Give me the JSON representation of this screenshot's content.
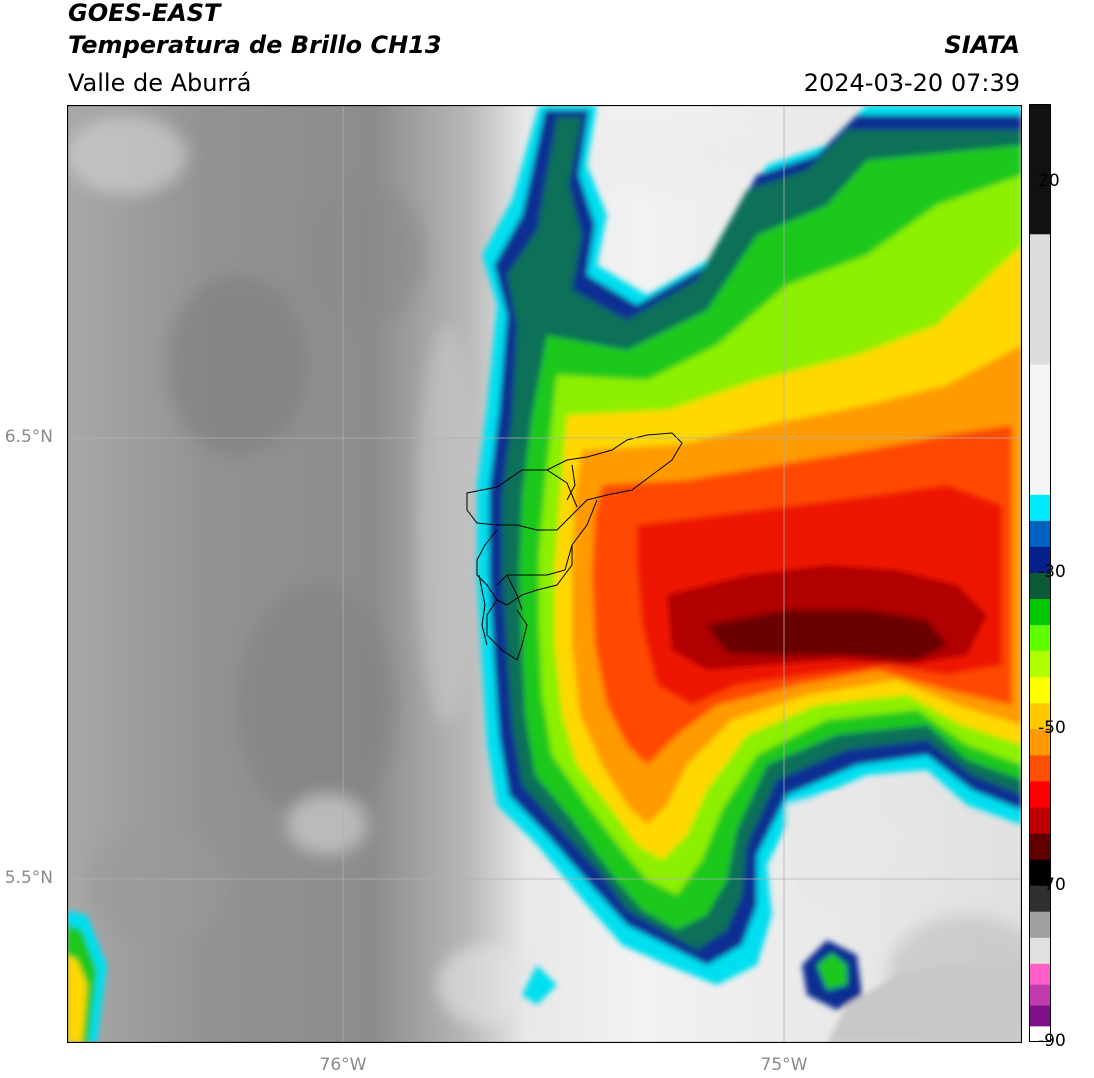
{
  "header": {
    "satellite": "GOES-EAST",
    "product": "Temperatura de Brillo CH13",
    "organization": "SIATA",
    "region": "Valle de Aburrá",
    "timestamp": "2024-03-20 07:39"
  },
  "map": {
    "lat_ticks": [
      {
        "label": "6.5°N",
        "value": 6.5
      },
      {
        "label": "5.5°N",
        "value": 5.5
      }
    ],
    "lon_ticks": [
      {
        "label": "76°W",
        "value": -76.0
      },
      {
        "label": "75°W",
        "value": -75.0
      }
    ],
    "colors": {
      "warm_gray_dark": "#8a8a8a",
      "warm_gray_light": "#e6e6e6",
      "cold_cyan": "#00e5f0",
      "cold_blue": "#062a8a",
      "cold_green": "#2fd12f",
      "cold_yellow": "#ffe000",
      "cold_orange": "#ff7a00",
      "cold_red": "#ff1a00",
      "coldest_darkred": "#6b0000",
      "boundary": "#000000",
      "grid": "#b0b0b0"
    }
  },
  "colorbar": {
    "tick_labels": [
      {
        "label": "20",
        "value": 20
      },
      {
        "label": "-30",
        "value": -30
      },
      {
        "label": "-50",
        "value": -50
      },
      {
        "label": "-70",
        "value": -70
      },
      {
        "label": "-90",
        "value": -90
      }
    ],
    "range": [
      -90,
      30
    ],
    "segments": [
      {
        "from": 30,
        "to": -20,
        "colors": [
          "#111111",
          "#dddddd",
          "#f5f5f5"
        ]
      },
      {
        "from": -20,
        "to": -30,
        "colors": [
          "#00eaff",
          "#0060c0",
          "#06208a"
        ]
      },
      {
        "from": -30,
        "to": -40,
        "colors": [
          "#0a5a3a",
          "#00c800",
          "#60ff00"
        ]
      },
      {
        "from": -40,
        "to": -50,
        "colors": [
          "#b0ff00",
          "#ffff00",
          "#ffc800"
        ]
      },
      {
        "from": -50,
        "to": -60,
        "colors": [
          "#ff9a00",
          "#ff5000",
          "#ff0000"
        ]
      },
      {
        "from": -60,
        "to": -70,
        "colors": [
          "#c00000",
          "#600000",
          "#000000"
        ]
      },
      {
        "from": -70,
        "to": -80,
        "colors": [
          "#303030",
          "#a0a0a0",
          "#e0e0e0"
        ]
      },
      {
        "from": -80,
        "to": -88,
        "colors": [
          "#ff60c8",
          "#c03ab0",
          "#80108c"
        ]
      },
      {
        "from": -88,
        "to": -90,
        "colors": [
          "#ffffff",
          "#ffffff"
        ]
      }
    ]
  }
}
